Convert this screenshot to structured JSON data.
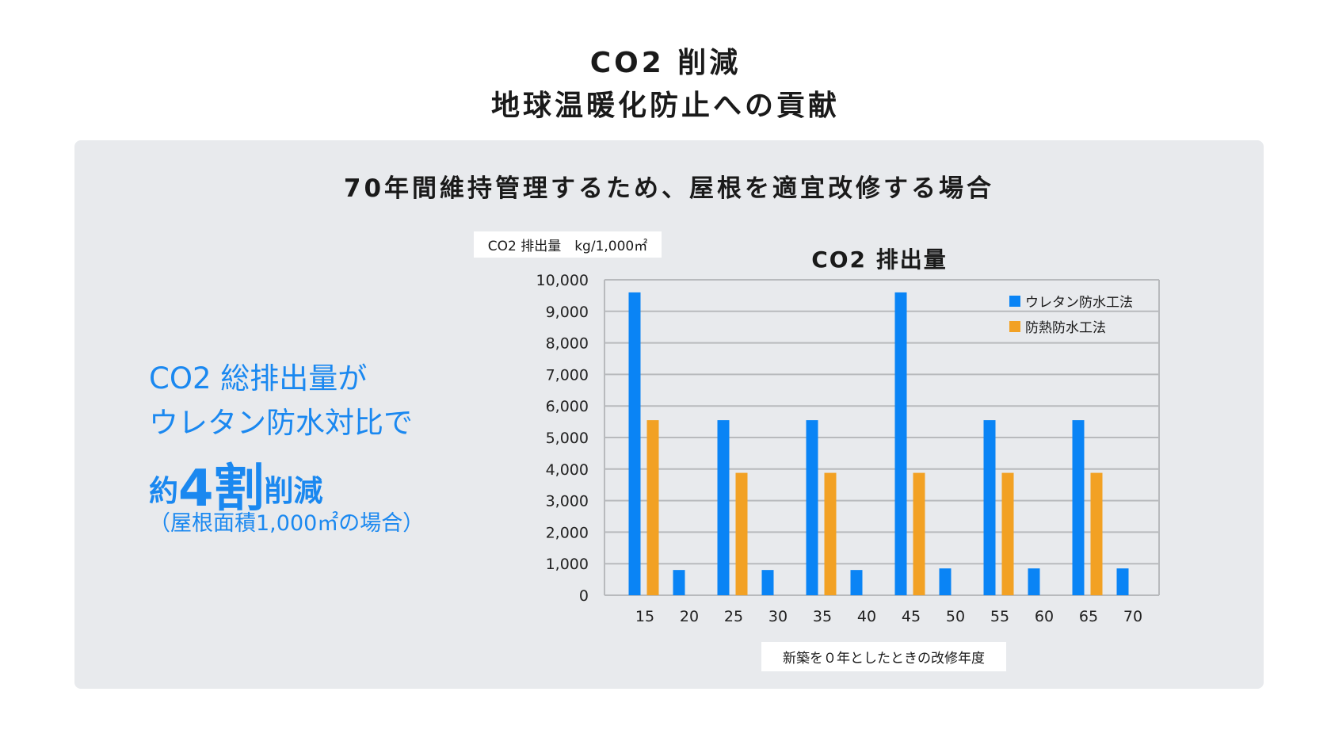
{
  "header": {
    "title_line1": "CO2 削減",
    "title_line2": "地球温暖化防止への貢献"
  },
  "panel": {
    "subtitle": "70年間維持管理するため、屋根を適宜改修する場合",
    "lead": {
      "line1": "CO2 総排出量が",
      "line2": "ウレタン防水対比で",
      "line3_pre": "約",
      "line3_big": "4割",
      "line3_post": "削減",
      "line4": "（屋根面積1,000㎡の場合）"
    }
  },
  "chart_data": {
    "type": "bar",
    "title": "CO2 排出量",
    "ylabel": "CO2 排出量　kg/1,000㎡",
    "xlabel": "新築を０年としたときの改修年度",
    "categories": [
      "15",
      "20",
      "25",
      "30",
      "35",
      "40",
      "45",
      "50",
      "55",
      "60",
      "65",
      "70"
    ],
    "series": [
      {
        "name": "ウレタン防水工法",
        "color": "#0a84f5",
        "values": [
          9600,
          800,
          5550,
          800,
          5550,
          800,
          9600,
          850,
          5550,
          850,
          5550,
          850
        ]
      },
      {
        "name": "防熱防水工法",
        "color": "#f2a124",
        "values": [
          5550,
          0,
          3880,
          0,
          3880,
          0,
          3880,
          0,
          3880,
          0,
          3880,
          0
        ]
      }
    ],
    "ylim": [
      0,
      10000
    ],
    "yticks": [
      "0",
      "1,000",
      "2,000",
      "3,000",
      "4,000",
      "5,000",
      "6,000",
      "7,000",
      "8,000",
      "9,000",
      "10,000"
    ],
    "grid": true,
    "legend": "top-right"
  }
}
